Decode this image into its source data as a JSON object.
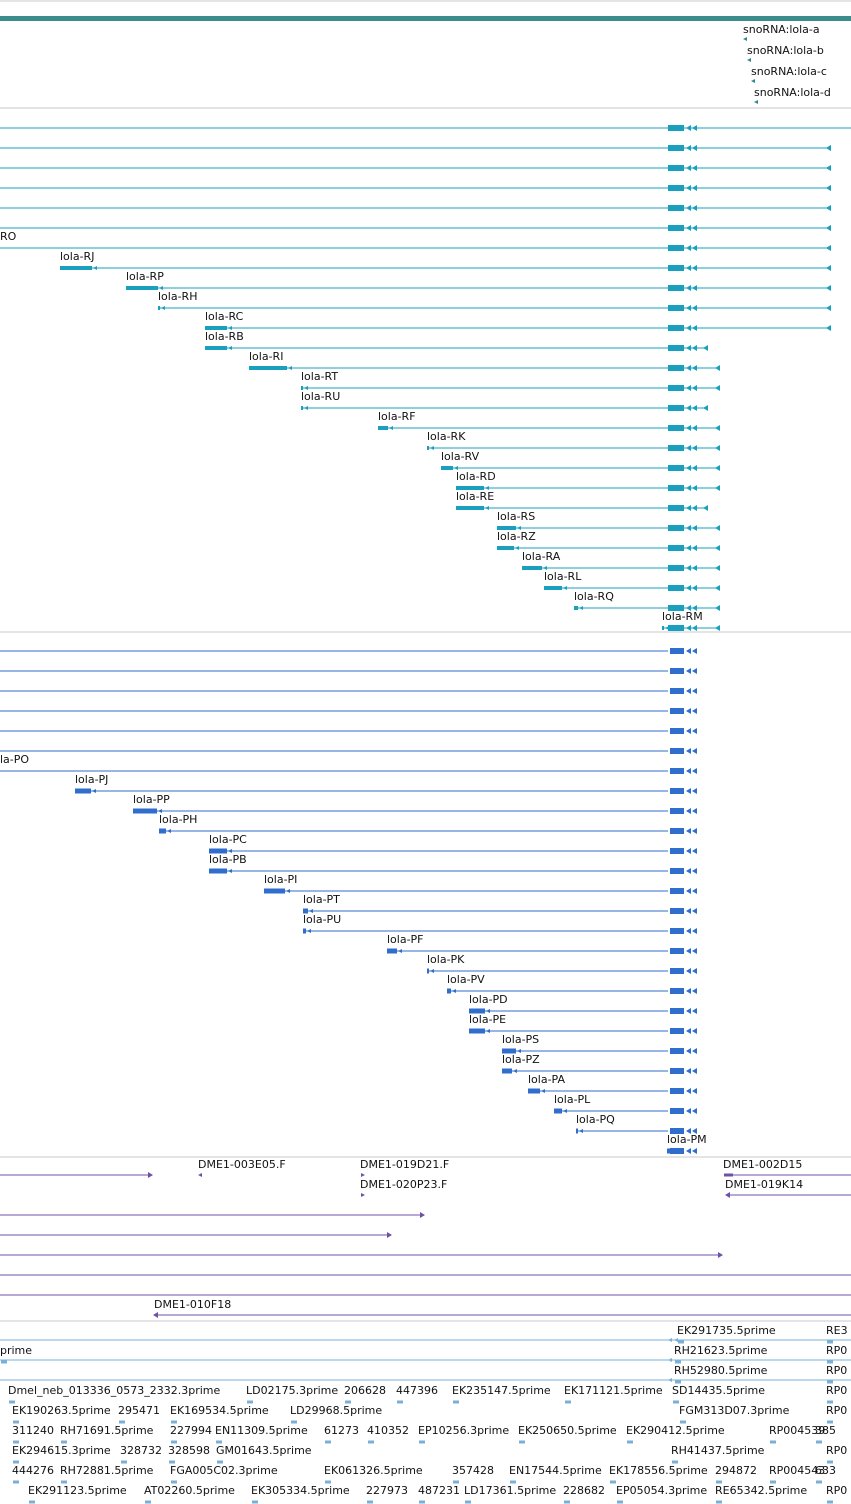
{
  "colors": {
    "header_bar": "#3c8c8c",
    "divider": "#c8c8c8",
    "snorna": "#2f8c8c",
    "rna": "#1aa0be",
    "protein": "#2f6ecc",
    "clone": "#7050a8",
    "est": "#7ab0d8"
  },
  "tracks": {
    "snorna": [
      {
        "label": "snoRNA:lola-a"
      },
      {
        "label": "snoRNA:lola-b"
      },
      {
        "label": "snoRNA:lola-c"
      },
      {
        "label": "snoRNA:lola-d"
      }
    ],
    "transcripts_rna": [
      {
        "label": ""
      },
      {
        "label": ""
      },
      {
        "label": ""
      },
      {
        "label": ""
      },
      {
        "label": ""
      },
      {
        "label": ""
      },
      {
        "label": "RO"
      },
      {
        "label": "lola-RJ"
      },
      {
        "label": "lola-RP"
      },
      {
        "label": "lola-RH"
      },
      {
        "label": "lola-RC"
      },
      {
        "label": "lola-RB"
      },
      {
        "label": "lola-RI"
      },
      {
        "label": "lola-RT"
      },
      {
        "label": "lola-RU"
      },
      {
        "label": "lola-RF"
      },
      {
        "label": "lola-RK"
      },
      {
        "label": "lola-RV"
      },
      {
        "label": "lola-RD"
      },
      {
        "label": "lola-RE"
      },
      {
        "label": "lola-RS"
      },
      {
        "label": "lola-RZ"
      },
      {
        "label": "lola-RA"
      },
      {
        "label": "lola-RL"
      },
      {
        "label": "lola-RQ"
      },
      {
        "label": "lola-RM"
      }
    ],
    "transcripts_protein": [
      {
        "label": ""
      },
      {
        "label": ""
      },
      {
        "label": ""
      },
      {
        "label": ""
      },
      {
        "label": ""
      },
      {
        "label": ""
      },
      {
        "label": "la-PO"
      },
      {
        "label": "lola-PJ"
      },
      {
        "label": "lola-PP"
      },
      {
        "label": "lola-PH"
      },
      {
        "label": "lola-PC"
      },
      {
        "label": "lola-PB"
      },
      {
        "label": "lola-PI"
      },
      {
        "label": "lola-PT"
      },
      {
        "label": "lola-PU"
      },
      {
        "label": "lola-PF"
      },
      {
        "label": "lola-PK"
      },
      {
        "label": "lola-PV"
      },
      {
        "label": "lola-PD"
      },
      {
        "label": "lola-PE"
      },
      {
        "label": "lola-PS"
      },
      {
        "label": "lola-PZ"
      },
      {
        "label": "lola-PA"
      },
      {
        "label": "lola-PL"
      },
      {
        "label": "lola-PQ"
      },
      {
        "label": "lola-PM"
      }
    ],
    "clones": [
      {
        "label": "DME1-003E05.F"
      },
      {
        "label": "DME1-019D21.F"
      },
      {
        "label": "DME1-020P23.F"
      },
      {
        "label": "DME1-002D15"
      },
      {
        "label": "DME1-019K14"
      },
      {
        "label": "DME1-010F18"
      }
    ],
    "ests": [
      {
        "label": "EK291735.5prime"
      },
      {
        "label": "RE3"
      },
      {
        "label": "prime"
      },
      {
        "label": "RH21623.5prime"
      },
      {
        "label": "RP0"
      },
      {
        "label": "RH52980.5prime"
      },
      {
        "label": "RP0"
      },
      {
        "label": "Dmel_neb_013336_0573_2332.3prime"
      },
      {
        "label": "LD02175.3prime"
      },
      {
        "label": "206628"
      },
      {
        "label": "447396"
      },
      {
        "label": "EK235147.5prime"
      },
      {
        "label": "EK171121.5prime"
      },
      {
        "label": "SD14435.5prime"
      },
      {
        "label": "RP0"
      },
      {
        "label": "EK190263.5prime"
      },
      {
        "label": "295471"
      },
      {
        "label": "EK169534.5prime"
      },
      {
        "label": "LD29968.5prime"
      },
      {
        "label": "FGM313D07.3prime"
      },
      {
        "label": "RP0"
      },
      {
        "label": "311240"
      },
      {
        "label": "RH71691.5prime"
      },
      {
        "label": "227994"
      },
      {
        "label": "EN11309.5prime"
      },
      {
        "label": "61273"
      },
      {
        "label": "410352"
      },
      {
        "label": "EP10256.3prime"
      },
      {
        "label": "EK250650.5prime"
      },
      {
        "label": "EK290412.5prime"
      },
      {
        "label": "RP004539"
      },
      {
        "label": "385"
      },
      {
        "label": "EK294615.3prime"
      },
      {
        "label": "328732"
      },
      {
        "label": "328598"
      },
      {
        "label": "GM01643.5prime"
      },
      {
        "label": "RH41437.5prime"
      },
      {
        "label": "RP0"
      },
      {
        "label": "444276"
      },
      {
        "label": "RH72881.5prime"
      },
      {
        "label": "FGA005C02.3prime"
      },
      {
        "label": "EK061326.5prime"
      },
      {
        "label": "357428"
      },
      {
        "label": "EN17544.5prime"
      },
      {
        "label": "EK178556.5prime"
      },
      {
        "label": "294872"
      },
      {
        "label": "RP004543"
      },
      {
        "label": "633"
      },
      {
        "label": "EK291123.5prime"
      },
      {
        "label": "AT02260.5prime"
      },
      {
        "label": "EK305334.5prime"
      },
      {
        "label": "227973"
      },
      {
        "label": "487231"
      },
      {
        "label": "LD17361.5prime"
      },
      {
        "label": "228682"
      },
      {
        "label": "EP05054.3prime"
      },
      {
        "label": "RE65342.5prime"
      },
      {
        "label": "RP0"
      }
    ]
  }
}
